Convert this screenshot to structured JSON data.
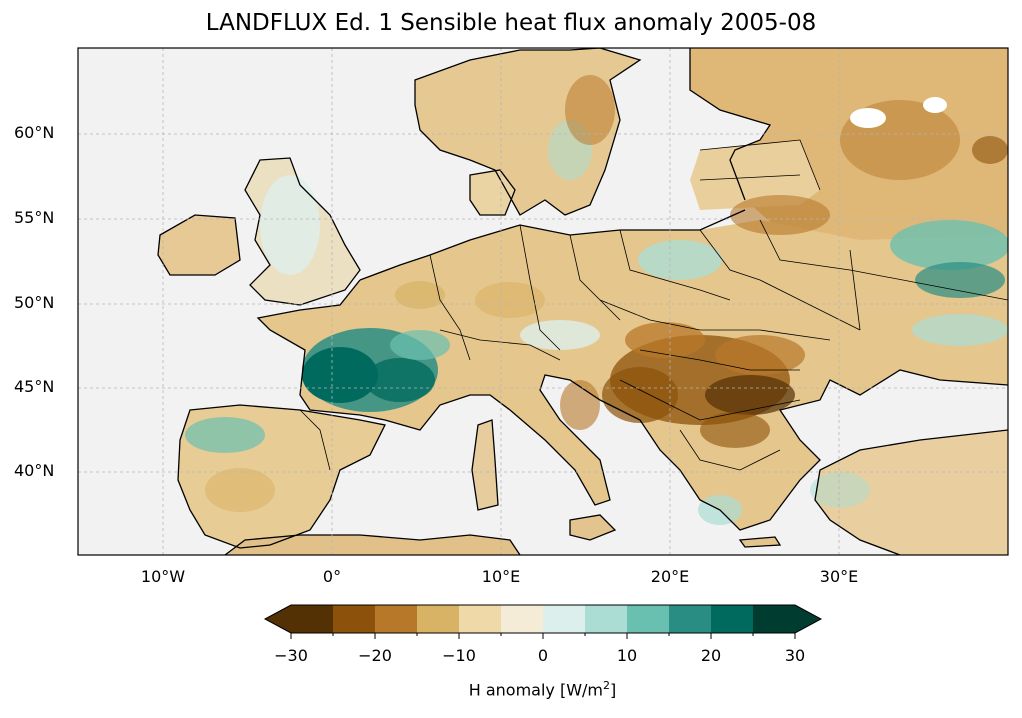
{
  "title": "LANDFLUX Ed. 1 Sensible heat flux anomaly 2005-08",
  "lat_labels": [
    "60°N",
    "55°N",
    "50°N",
    "45°N",
    "40°N"
  ],
  "lon_labels": [
    "10°W",
    "0°",
    "10°E",
    "20°E",
    "30°E"
  ],
  "colorbar": {
    "label_main": "H anomaly [W/m",
    "label_sup": "2",
    "label_end": "]",
    "ticks": [
      "−30",
      "−20",
      "−10",
      "0",
      "10",
      "20",
      "30"
    ],
    "colors": [
      "#543005",
      "#8c510a",
      "#b8782a",
      "#d8b365",
      "#f0d9a8",
      "#f5ecd8",
      "#ddefec",
      "#abddd4",
      "#6ac0b0",
      "#2a8d84",
      "#016a5e",
      "#003c30"
    ],
    "extend_low": "#543005",
    "extend_high": "#003c30"
  },
  "map_colors": {
    "ocean": "#f2f2f2",
    "land_base": "#e8cc92",
    "coast": "#000000",
    "grid": "#b5b5b5"
  }
}
